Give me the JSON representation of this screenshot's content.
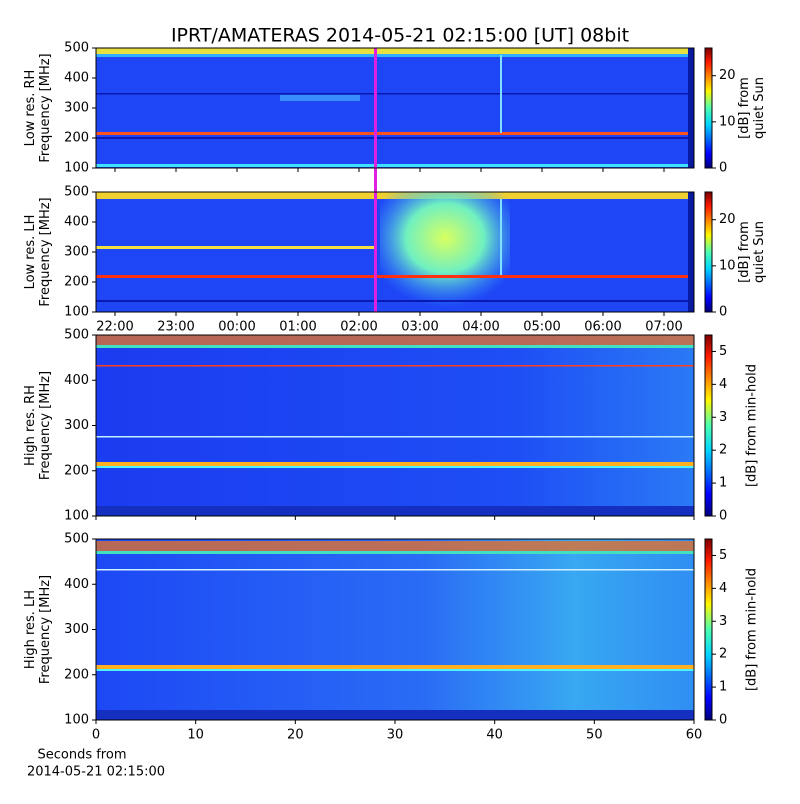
{
  "title": "IPRT/AMATERAS 2014-05-21 02:15:00 [UT]   08bit",
  "panels": [
    {
      "ylabel": [
        "Low res. RH",
        "Frequency [MHz]"
      ],
      "ylim": [
        100,
        500
      ],
      "yticks": [
        100,
        200,
        300,
        400,
        500
      ],
      "colorbar": {
        "label": [
          "[dB] from",
          "quiet Sun"
        ],
        "lim": [
          0,
          26
        ],
        "ticks": [
          0,
          10,
          20
        ]
      }
    },
    {
      "ylabel": [
        "Low res. LH",
        "Frequency [MHz]"
      ],
      "ylim": [
        100,
        500
      ],
      "yticks": [
        100,
        200,
        300,
        400,
        500
      ],
      "colorbar": {
        "label": [
          "[dB] from",
          "quiet Sun"
        ],
        "lim": [
          0,
          26
        ],
        "ticks": [
          0,
          10,
          20
        ]
      }
    },
    {
      "ylabel": [
        "High res. RH",
        "Frequency [MHz]"
      ],
      "ylim": [
        100,
        500
      ],
      "yticks": [
        100,
        200,
        300,
        400,
        500
      ],
      "colorbar": {
        "label": [
          "[dB] from min-hold"
        ],
        "lim": [
          0,
          5.5
        ],
        "ticks": [
          0,
          1,
          2,
          3,
          4,
          5
        ]
      }
    },
    {
      "ylabel": [
        "High res. LH",
        "Frequency [MHz]"
      ],
      "ylim": [
        100,
        500
      ],
      "yticks": [
        100,
        200,
        300,
        400,
        500
      ],
      "colorbar": {
        "label": [
          "[dB] from min-hold"
        ],
        "lim": [
          0,
          5.5
        ],
        "ticks": [
          0,
          1,
          2,
          3,
          4,
          5
        ]
      }
    }
  ],
  "time_ticks": [
    "22:00",
    "23:00",
    "00:00",
    "01:00",
    "02:00",
    "03:00",
    "04:00",
    "05:00",
    "06:00",
    "07:00"
  ],
  "seconds_axis": {
    "label": [
      "Seconds from",
      "2014-05-21 02:15:00"
    ],
    "xlim": [
      0,
      60
    ],
    "xticks": [
      0,
      10,
      20,
      30,
      40,
      50,
      60
    ]
  }
}
